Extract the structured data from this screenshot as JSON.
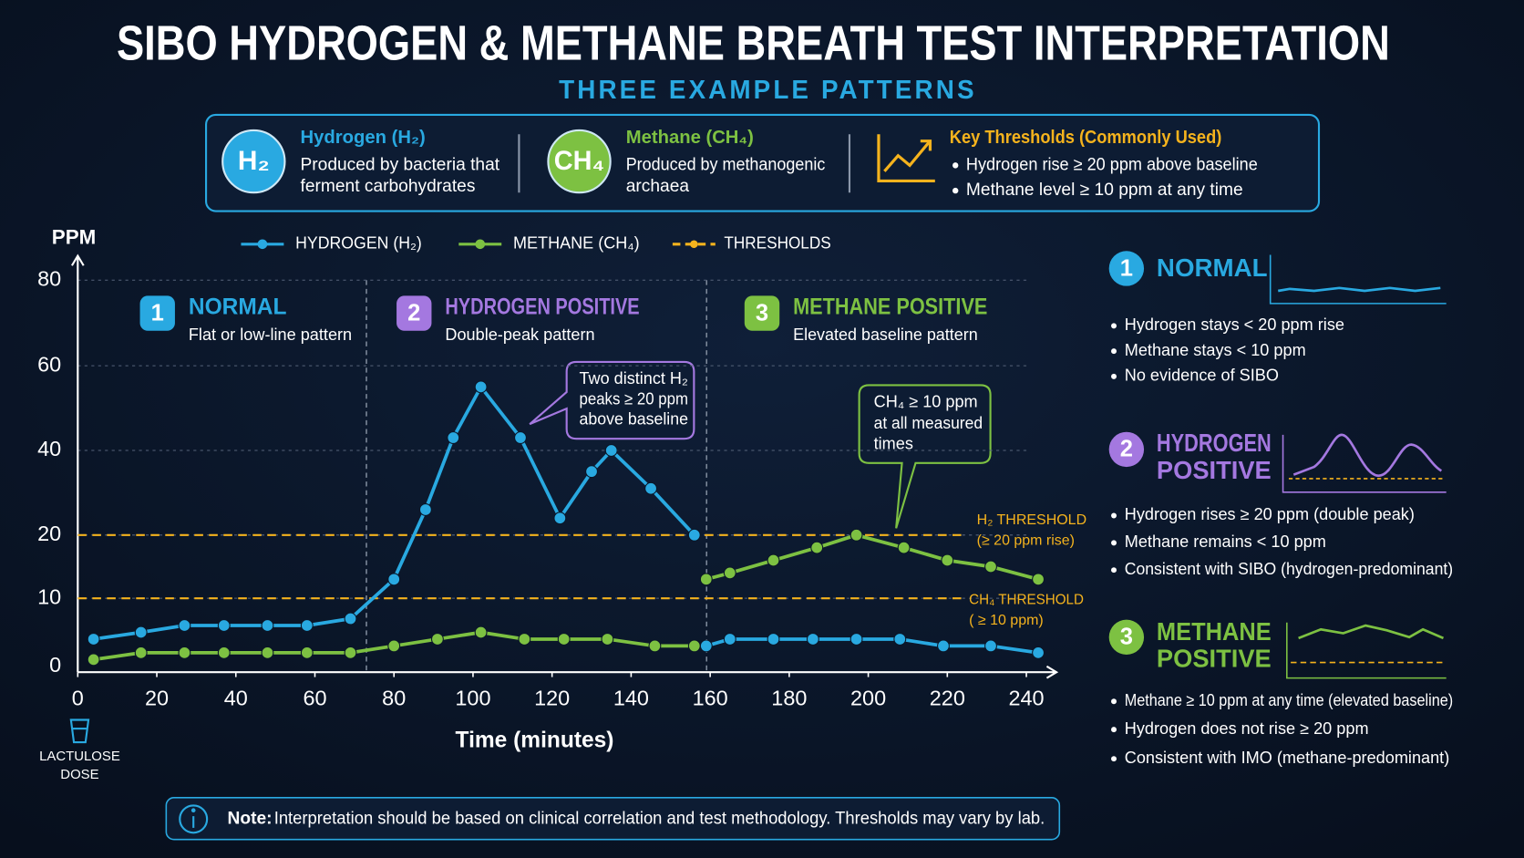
{
  "title": "SIBO HYDROGEN & METHANE BREATH TEST INTERPRETATION",
  "subtitle": "THREE EXAMPLE PATTERNS",
  "info_box": {
    "items": [
      {
        "icon": "H₂",
        "title": "Hydrogen (H₂)",
        "lines": [
          "Produced by bacteria that",
          "ferment carbohydrates"
        ],
        "color": "#29a9e1"
      },
      {
        "icon": "CH₄",
        "title": "Methane (CH₄)",
        "lines": [
          "Produced by methanogenic",
          "archaea"
        ],
        "color": "#7dc142"
      },
      {
        "title": "Key Thresholds (Commonly Used)",
        "bullets": [
          "Hydrogen rise ≥ 20 ppm above baseline",
          "Methane level ≥ 10 ppm at any time"
        ],
        "color": "#f5b31d"
      }
    ]
  },
  "chart_data": {
    "type": "line",
    "y_label": "PPM",
    "x_label": "Time (minutes)",
    "x_note": [
      "LACTULOSE",
      "DOSE"
    ],
    "xlim": [
      0,
      240
    ],
    "xticks": [
      0,
      20,
      40,
      60,
      80,
      100,
      120,
      140,
      160,
      180,
      200,
      220,
      240
    ],
    "ylim": [
      0,
      80
    ],
    "yticks": [
      0,
      10,
      20,
      40,
      60,
      80
    ],
    "grid": true,
    "series": [
      {
        "name": "HYDROGEN (H₂)",
        "color": "#29a9e1",
        "x": [
          4,
          16,
          27,
          37,
          48,
          58,
          69,
          80,
          88,
          95,
          102,
          112,
          122,
          130,
          135,
          145,
          156,
          null,
          159,
          165,
          176,
          186,
          197,
          208,
          219,
          231,
          243
        ],
        "values": [
          4,
          5,
          6,
          6,
          6,
          6,
          7,
          13,
          26,
          43,
          55,
          43,
          24,
          35,
          40,
          31,
          20,
          null,
          3,
          4,
          4,
          4,
          4,
          4,
          3,
          3,
          2
        ]
      },
      {
        "name": "METHANE (CH₄)",
        "color": "#7dc142",
        "x": [
          4,
          16,
          27,
          37,
          48,
          58,
          69,
          80,
          91,
          102,
          113,
          123,
          134,
          146,
          156,
          null,
          159,
          165,
          176,
          187,
          197,
          209,
          220,
          231,
          243
        ],
        "values": [
          1,
          2,
          2,
          2,
          2,
          2,
          2,
          3,
          4,
          5,
          4,
          4,
          4,
          3,
          3,
          null,
          13,
          14,
          16,
          18,
          20,
          18,
          16,
          15,
          13
        ]
      }
    ],
    "thresholds": {
      "name": "THRESHOLDS",
      "color": "#f5b31d",
      "lines": [
        {
          "value": 20,
          "label": [
            "H₂ THRESHOLD",
            "(≥ 20 ppm rise)"
          ]
        },
        {
          "value": 10,
          "label": [
            "CH₄ THRESHOLD",
            "( ≥ 10 ppm)"
          ]
        }
      ]
    },
    "panels": [
      {
        "number": "1",
        "title": "NORMAL",
        "subtitle": "Flat or low-line pattern",
        "color": "#29a9e1"
      },
      {
        "number": "2",
        "title": "HYDROGEN POSITIVE",
        "subtitle": "Double-peak pattern",
        "color": "#a478e0"
      },
      {
        "number": "3",
        "title": "METHANE POSITIVE",
        "subtitle": "Elevated baseline pattern",
        "color": "#7dc142"
      }
    ],
    "annotations": [
      {
        "lines": [
          "Two distinct H₂",
          "peaks ≥ 20 ppm",
          "above baseline"
        ],
        "color": "#a478e0"
      },
      {
        "lines": [
          "CH₄ ≥ 10 ppm",
          "at all measured",
          "times"
        ],
        "color": "#7dc142"
      }
    ]
  },
  "cards": [
    {
      "number": "1",
      "title": [
        "NORMAL"
      ],
      "color": "#29a9e1",
      "bullets": [
        "Hydrogen stays < 20 ppm rise",
        "Methane stays < 10 ppm",
        "No evidence of SIBO"
      ]
    },
    {
      "number": "2",
      "title": [
        "HYDROGEN",
        "POSITIVE"
      ],
      "color": "#a478e0",
      "bullets": [
        "Hydrogen rises ≥ 20 ppm (double peak)",
        "Methane remains < 10 ppm",
        "Consistent with SIBO (hydrogen-predominant)"
      ]
    },
    {
      "number": "3",
      "title": [
        "METHANE",
        "POSITIVE"
      ],
      "color": "#7dc142",
      "bullets": [
        "Methane ≥ 10 ppm at any time (elevated baseline)",
        "Hydrogen does not rise ≥ 20 ppm",
        "Consistent with IMO (methane-predominant)"
      ]
    }
  ],
  "footer": {
    "label": "Note:",
    "text": "Interpretation should be based on clinical correlation and test methodology. Thresholds may vary by lab."
  }
}
